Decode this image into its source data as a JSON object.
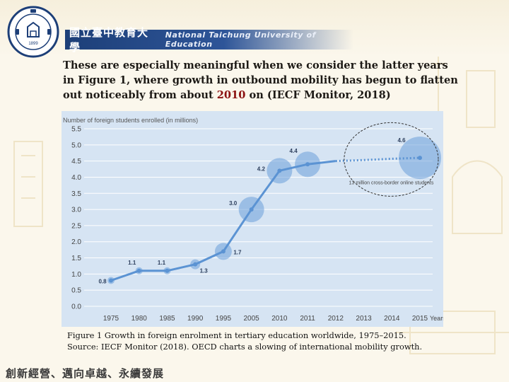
{
  "header": {
    "university_zh": "國立臺中教育大學",
    "university_en": "National Taichung University of Education"
  },
  "logo": {
    "year": "1899"
  },
  "intro": {
    "before": "These are especially meaningful when we consider the latter years in Figure 1, where growth in outbound mobility has begun to flatten out noticeably from about ",
    "highlight": "2010",
    "after": " on (IECF Monitor, 2018)"
  },
  "caption": {
    "line1": "Figure 1 Growth in foreign enrolment in tertiary education worldwide, 1975–2015.",
    "line2": "Source: IECF Monitor (2018). OECD charts a slowing of international mobility growth."
  },
  "footer": {
    "motto": "創新經營、邁向卓越、永續發展"
  },
  "colors": {
    "banner": "#1d3f78",
    "highlight": "#8b1111",
    "chart_bg": "#d6e4f3",
    "line": "#5b93d3",
    "bubble": "#6b9fd8"
  },
  "chart_data": {
    "type": "line",
    "title": "Number of foreign students enrolled (in millions)",
    "categories": [
      "1975",
      "1980",
      "1985",
      "1990",
      "1995",
      "2005",
      "2010",
      "2011",
      "2012",
      "2013",
      "2014",
      "2015"
    ],
    "x_suffix": "Years",
    "values": [
      0.8,
      1.1,
      1.1,
      1.3,
      1.7,
      3.0,
      4.2,
      4.4,
      4.5,
      4.53,
      4.57,
      4.6
    ],
    "data_labels": [
      {
        "category": "1975",
        "text": "0.8"
      },
      {
        "category": "1980",
        "text": "1.1"
      },
      {
        "category": "1985",
        "text": "1.1"
      },
      {
        "category": "1990",
        "text": "1.3"
      },
      {
        "category": "1995",
        "text": "1.7"
      },
      {
        "category": "2005",
        "text": "3.0"
      },
      {
        "category": "2010",
        "text": "4.2"
      },
      {
        "category": "2011",
        "text": "4.4"
      },
      {
        "category": "2015",
        "text": "4.6"
      }
    ],
    "y_ticks": [
      "0.0",
      "0.5",
      "1.0",
      "1.5",
      "2.0",
      "2.5",
      "3.0",
      "3.5",
      "4.0",
      "4.5",
      "5.0",
      "5.5"
    ],
    "ylim": [
      0,
      5.5
    ],
    "grid": true,
    "annotation": "13 million cross-border online students"
  }
}
